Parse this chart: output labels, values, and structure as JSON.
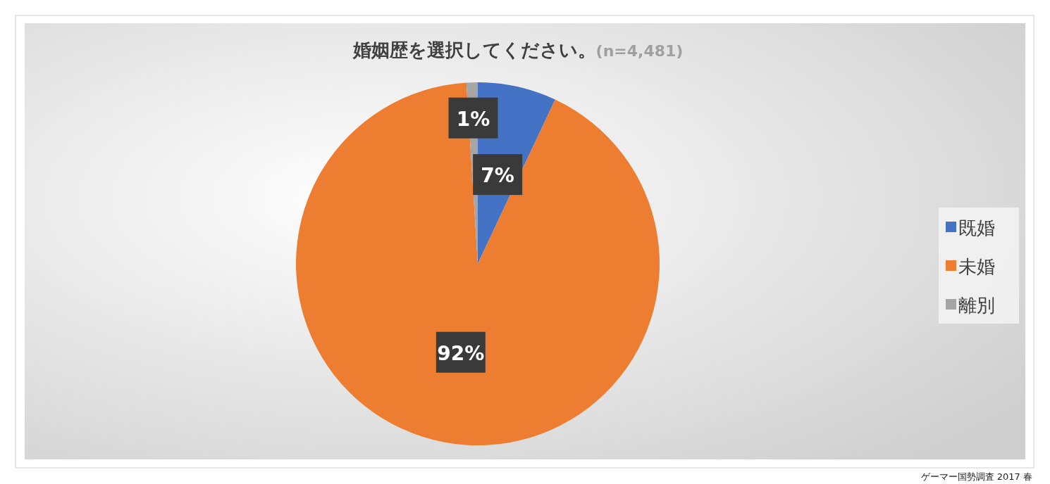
{
  "chart_data": {
    "type": "pie",
    "title": "婚姻歴を選択してください。",
    "subtitle": "(n=4,481)",
    "categories": [
      "既婚",
      "未婚",
      "離別"
    ],
    "values": [
      7,
      92,
      1
    ],
    "colors": [
      "#4472c4",
      "#ed7d31",
      "#a5a5a5"
    ],
    "value_labels": [
      "7%",
      "92%",
      "1%"
    ],
    "legend": "right",
    "annotations": [
      "ゲーマー国勢調査 2017 春"
    ]
  }
}
